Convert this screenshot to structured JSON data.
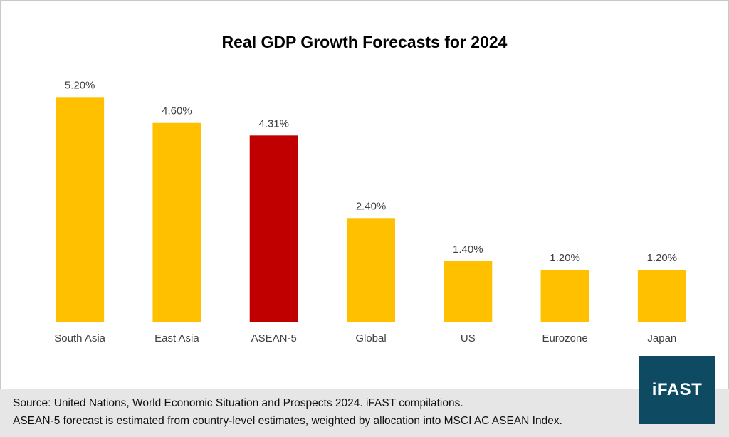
{
  "chart_data": {
    "type": "bar",
    "title": "Real GDP Growth Forecasts for 2024",
    "categories": [
      "South Asia",
      "East Asia",
      "ASEAN-5",
      "Global",
      "US",
      "Eurozone",
      "Japan"
    ],
    "values": [
      5.2,
      4.6,
      4.31,
      2.4,
      1.4,
      1.2,
      1.2
    ],
    "data_labels": [
      "5.20%",
      "4.60%",
      "4.31%",
      "2.40%",
      "1.40%",
      "1.20%",
      "1.20%"
    ],
    "bar_colors": [
      "#ffc000",
      "#ffc000",
      "#c00000",
      "#ffc000",
      "#ffc000",
      "#ffc000",
      "#ffc000"
    ],
    "ylim": [
      0,
      5.6
    ],
    "grid": false,
    "xlabel": "",
    "ylabel": ""
  },
  "footer": {
    "source_line": "Source: United Nations, World Economic Situation and Prospects 2024. iFAST compilations.",
    "note_line": "ASEAN-5 forecast is estimated from country-level estimates, weighted by allocation into MSCI AC ASEAN Index."
  },
  "logo": {
    "text": "iFAST",
    "color": "#0f4a63"
  },
  "colors": {
    "highlight": "#c00000",
    "default_bar": "#ffc000",
    "footer_bg": "#e6e6e6"
  }
}
